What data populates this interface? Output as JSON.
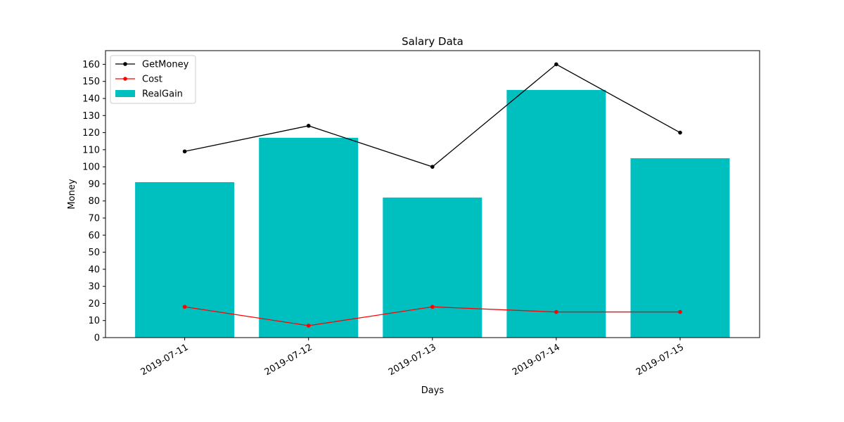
{
  "chart_data": {
    "type": "bar",
    "title": "Salary Data",
    "xlabel": "Days",
    "ylabel": "Money",
    "categories": [
      "2019-07-11",
      "2019-07-12",
      "2019-07-13",
      "2019-07-14",
      "2019-07-15"
    ],
    "ylim": [
      0,
      168
    ],
    "yticks": [
      0,
      10,
      20,
      30,
      40,
      50,
      60,
      70,
      80,
      90,
      100,
      110,
      120,
      130,
      140,
      150,
      160
    ],
    "grid": false,
    "legend_position": "top-left",
    "series": [
      {
        "name": "GetMoney",
        "type": "line",
        "color": "#000000",
        "values": [
          109,
          124,
          100,
          160,
          120
        ]
      },
      {
        "name": "Cost",
        "type": "line",
        "color": "#ff0000",
        "values": [
          18,
          7,
          18,
          15,
          15
        ]
      },
      {
        "name": "RealGain",
        "type": "bar",
        "color": "#00bfbf",
        "values": [
          91,
          117,
          82,
          145,
          105
        ]
      }
    ]
  }
}
